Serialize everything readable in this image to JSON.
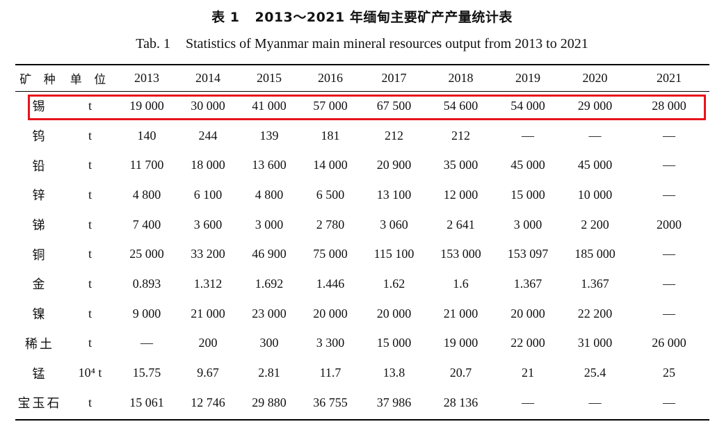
{
  "caption": {
    "cn_number": "表 1",
    "cn_text": "2013～2021 年缅甸主要矿产产量统计表",
    "en_number": "Tab. 1",
    "en_text": "Statistics of Myanmar main mineral resources output from 2013 to 2021"
  },
  "table": {
    "headers": [
      "矿 种",
      "单 位",
      "2013",
      "2014",
      "2015",
      "2016",
      "2017",
      "2018",
      "2019",
      "2020",
      "2021"
    ],
    "rows": [
      [
        "锡",
        "t",
        "19 000",
        "30 000",
        "41 000",
        "57 000",
        "67 500",
        "54 600",
        "54 000",
        "29 000",
        "28 000"
      ],
      [
        "钨",
        "t",
        "140",
        "244",
        "139",
        "181",
        "212",
        "212",
        "—",
        "—",
        "—"
      ],
      [
        "铅",
        "t",
        "11 700",
        "18 000",
        "13 600",
        "14 000",
        "20 900",
        "35 000",
        "45 000",
        "45 000",
        "—"
      ],
      [
        "锌",
        "t",
        "4 800",
        "6 100",
        "4 800",
        "6 500",
        "13 100",
        "12 000",
        "15 000",
        "10 000",
        "—"
      ],
      [
        "锑",
        "t",
        "7 400",
        "3 600",
        "3 000",
        "2 780",
        "3 060",
        "2 641",
        "3 000",
        "2 200",
        "2000"
      ],
      [
        "铜",
        "t",
        "25 000",
        "33 200",
        "46 900",
        "75 000",
        "115 100",
        "153 000",
        "153 097",
        "185 000",
        "—"
      ],
      [
        "金",
        "t",
        "0.893",
        "1.312",
        "1.692",
        "1.446",
        "1.62",
        "1.6",
        "1.367",
        "1.367",
        "—"
      ],
      [
        "镍",
        "t",
        "9 000",
        "21 000",
        "23 000",
        "20 000",
        "20 000",
        "21 000",
        "20 000",
        "22 200",
        "—"
      ],
      [
        "稀土",
        "t",
        "—",
        "200",
        "300",
        "3 300",
        "15 000",
        "19 000",
        "22 000",
        "31 000",
        "26 000"
      ],
      [
        "锰",
        "10⁴ t",
        "15.75",
        "9.67",
        "2.81",
        "11.7",
        "13.8",
        "20.7",
        "21",
        "25.4",
        "25"
      ],
      [
        "宝玉石",
        "t",
        "15 061",
        "12 746",
        "29 880",
        "36 755",
        "37 986",
        "28 136",
        "—",
        "—",
        "—"
      ]
    ],
    "highlighted_row_index": 0,
    "highlight_color": "#e8141b"
  }
}
